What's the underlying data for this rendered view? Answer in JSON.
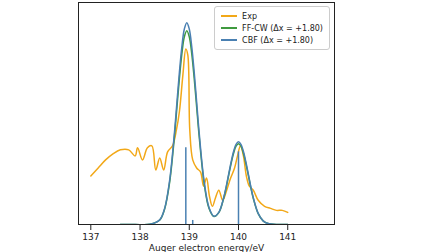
{
  "chart_data": {
    "type": "line",
    "x_label": "Auger electron energy/eV",
    "xlim": [
      136.75,
      141.95
    ],
    "ylim": [
      0,
      1.1
    ],
    "xticks": [
      137,
      138,
      139,
      140,
      141
    ],
    "tick_labels": "x",
    "legend": "upper right",
    "series": [
      {
        "name": "Exp",
        "color": "#f2a818",
        "x": [
          137.0,
          137.15,
          137.3,
          137.45,
          137.6,
          137.77,
          137.9,
          137.95,
          138.05,
          138.15,
          138.24,
          138.32,
          138.4,
          138.48,
          138.56,
          138.66,
          138.74,
          138.8,
          138.87,
          138.93,
          138.97,
          139.01,
          139.07,
          139.15,
          139.23,
          139.29,
          139.35,
          139.41,
          139.47,
          139.53,
          139.6,
          139.68,
          139.76,
          139.84,
          139.92,
          139.98,
          140.04,
          140.1,
          140.16,
          140.22,
          140.3,
          140.4,
          140.53,
          140.65,
          140.77,
          140.89,
          141.0
        ],
        "values": [
          0.24,
          0.28,
          0.32,
          0.35,
          0.37,
          0.37,
          0.34,
          0.38,
          0.32,
          0.38,
          0.39,
          0.27,
          0.33,
          0.27,
          0.36,
          0.39,
          0.47,
          0.56,
          0.74,
          0.87,
          0.84,
          0.47,
          0.32,
          0.28,
          0.26,
          0.19,
          0.23,
          0.14,
          0.09,
          0.13,
          0.17,
          0.12,
          0.17,
          0.23,
          0.28,
          0.34,
          0.39,
          0.34,
          0.24,
          0.19,
          0.17,
          0.12,
          0.09,
          0.08,
          0.07,
          0.07,
          0.06
        ]
      },
      {
        "name": "FF-CW (Δx = +1.80)",
        "color": "#3f9a3f",
        "x": [
          137.6,
          137.9,
          138.2,
          138.4,
          138.5,
          138.6,
          138.7,
          138.75,
          138.8,
          138.85,
          138.9,
          138.95,
          139.0,
          139.05,
          139.1,
          139.15,
          139.2,
          139.3,
          139.4,
          139.5,
          139.6,
          139.7,
          139.75,
          139.8,
          139.85,
          139.9,
          139.95,
          140.0,
          140.05,
          140.1,
          140.15,
          140.2,
          140.25,
          140.3,
          140.4,
          140.5,
          140.6,
          140.8,
          141.0
        ],
        "values": [
          0,
          0,
          0.001,
          0.022,
          0.077,
          0.207,
          0.44,
          0.583,
          0.725,
          0.847,
          0.93,
          0.96,
          0.93,
          0.847,
          0.725,
          0.583,
          0.44,
          0.208,
          0.081,
          0.04,
          0.059,
          0.131,
          0.183,
          0.243,
          0.302,
          0.353,
          0.388,
          0.4,
          0.388,
          0.353,
          0.302,
          0.243,
          0.183,
          0.13,
          0.054,
          0.018,
          0.005,
          0,
          0
        ]
      },
      {
        "name": "CBF (Δx = +1.80)",
        "color": "#4a80b2",
        "x": [
          137.6,
          137.9,
          138.2,
          138.4,
          138.5,
          138.6,
          138.7,
          138.75,
          138.8,
          138.85,
          138.9,
          138.95,
          139.0,
          139.05,
          139.1,
          139.15,
          139.2,
          139.3,
          139.4,
          139.5,
          139.6,
          139.7,
          139.75,
          139.8,
          139.85,
          139.9,
          139.95,
          140.0,
          140.05,
          140.1,
          140.15,
          140.2,
          140.25,
          140.3,
          140.4,
          140.5,
          140.6,
          140.8,
          141.0
        ],
        "values": [
          0,
          0,
          0.001,
          0.023,
          0.08,
          0.216,
          0.458,
          0.607,
          0.755,
          0.882,
          0.969,
          1.0,
          0.969,
          0.882,
          0.755,
          0.607,
          0.458,
          0.217,
          0.085,
          0.041,
          0.06,
          0.134,
          0.188,
          0.249,
          0.31,
          0.362,
          0.397,
          0.41,
          0.397,
          0.362,
          0.31,
          0.249,
          0.188,
          0.133,
          0.055,
          0.018,
          0.005,
          0,
          0
        ]
      }
    ],
    "sticks": {
      "color": "#4a80b2",
      "x": [
        138.93,
        139.07,
        140.0
      ],
      "values": [
        0.38,
        0.02,
        0.36
      ]
    }
  }
}
